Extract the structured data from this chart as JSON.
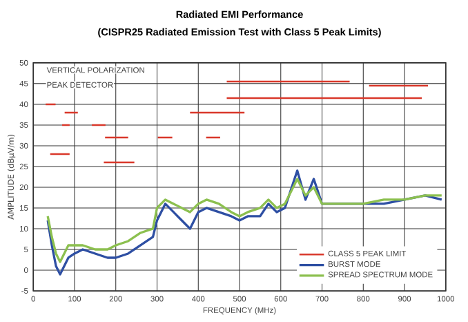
{
  "chart_data": {
    "type": "line",
    "title": "Radiated EMI Performance",
    "subtitle": "(CISPR25 Radiated Emission Test with Class 5 Peak Limits)",
    "xlabel": "FREQUENCY (MHz)",
    "ylabel": "AMPLITUDE (dBμV/m)",
    "annotations": [
      "VERTICAL POLARIZATION",
      "PEAK DETECTOR"
    ],
    "xlim": [
      0,
      1000
    ],
    "ylim": [
      -5,
      50
    ],
    "xticks": [
      0,
      100,
      200,
      300,
      400,
      500,
      600,
      700,
      800,
      900,
      1000
    ],
    "yticks": [
      -5,
      0,
      5,
      10,
      15,
      20,
      25,
      30,
      35,
      40,
      45,
      50
    ],
    "grid": true,
    "legend": "bottom right",
    "series": [
      {
        "name": "CLASS 5 PEAK LIMIT",
        "color": "#d9382b",
        "x": [
          30,
          54,
          null,
          41,
          88,
          null,
          76,
          108,
          null,
          70,
          88,
          null,
          142,
          175,
          null,
          174,
          230,
          null,
          171,
          245,
          null,
          302,
          337,
          null,
          419,
          453,
          null,
          380,
          512,
          null,
          469,
          767,
          null,
          469,
          942,
          null,
          814,
          957
        ],
        "values": [
          40,
          40,
          null,
          28,
          28,
          null,
          38,
          38,
          null,
          35,
          35,
          null,
          35,
          35,
          null,
          32,
          32,
          null,
          26,
          26,
          null,
          32,
          32,
          null,
          32,
          32,
          null,
          38,
          38,
          null,
          45.5,
          45.5,
          null,
          41.5,
          41.5,
          null,
          44.5,
          44.5
        ]
      },
      {
        "name": "BURST MODE",
        "color": "#2e4fa3",
        "x": [
          35,
          45,
          55,
          65,
          75,
          85,
          100,
          120,
          150,
          180,
          200,
          230,
          260,
          290,
          300,
          320,
          340,
          360,
          380,
          400,
          420,
          450,
          480,
          500,
          520,
          550,
          570,
          590,
          610,
          640,
          660,
          680,
          700,
          750,
          800,
          850,
          900,
          950,
          990
        ],
        "values": [
          12,
          6,
          1,
          -1,
          1,
          3,
          4,
          5,
          4,
          3,
          3,
          4,
          6,
          8,
          12,
          16,
          14,
          12,
          10,
          14,
          15,
          14,
          13,
          12,
          13,
          13,
          16,
          14,
          15,
          24,
          17,
          22,
          16,
          16,
          16,
          16,
          17,
          18,
          17
        ]
      },
      {
        "name": "SPREAD SPECTRUM MODE",
        "color": "#8cc04f",
        "x": [
          35,
          45,
          55,
          65,
          75,
          85,
          100,
          120,
          150,
          180,
          200,
          230,
          260,
          290,
          300,
          320,
          340,
          360,
          380,
          400,
          420,
          450,
          480,
          500,
          520,
          550,
          570,
          590,
          610,
          640,
          660,
          680,
          700,
          750,
          800,
          850,
          900,
          950,
          990
        ],
        "values": [
          13,
          8,
          4,
          2,
          4,
          6,
          6,
          6,
          5,
          5,
          6,
          7,
          9,
          10,
          15,
          17,
          16,
          15,
          14,
          16,
          17,
          16,
          14,
          13,
          14,
          15,
          17,
          15,
          16,
          22,
          18,
          20,
          16,
          16,
          16,
          17,
          17,
          18,
          18
        ]
      }
    ]
  }
}
